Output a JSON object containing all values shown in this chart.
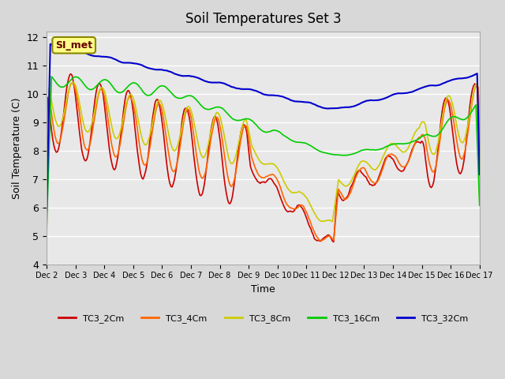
{
  "title": "Soil Temperatures Set 3",
  "xlabel": "Time",
  "ylabel": "Soil Temperature (C)",
  "ylim": [
    4.0,
    12.2
  ],
  "yticks": [
    4.0,
    5.0,
    6.0,
    7.0,
    8.0,
    9.0,
    10.0,
    11.0,
    12.0
  ],
  "x_labels": [
    "Dec 2",
    "Dec 3",
    "Dec 4",
    "Dec 5",
    "Dec 6",
    "Dec 7",
    "Dec 8",
    "Dec 9",
    "Dec 10",
    "Dec 11",
    "Dec 12",
    "Dec 13",
    "Dec 14",
    "Dec 15",
    "Dec 16",
    "Dec 17"
  ],
  "colors": {
    "TC3_2Cm": "#cc0000",
    "TC3_4Cm": "#ff6600",
    "TC3_8Cm": "#cccc00",
    "TC3_16Cm": "#00cc00",
    "TC3_32Cm": "#0000cc"
  },
  "plot_bg_color": "#e8e8e8",
  "fig_bg_color": "#d8d8d8",
  "annotation_text": "SI_met",
  "annotation_box_color": "#ffff88",
  "annotation_border_color": "#888800"
}
